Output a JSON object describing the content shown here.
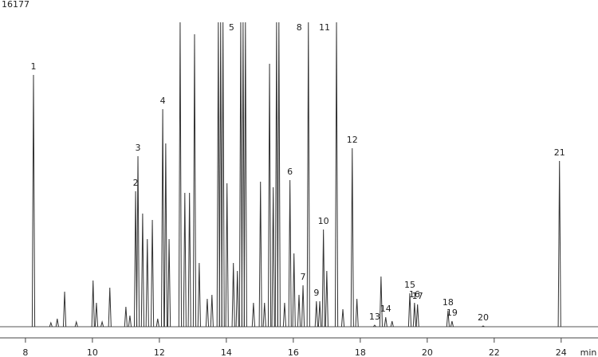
{
  "chart_data": {
    "type": "line",
    "xlabel": "min",
    "color": "#333333",
    "xlim": [
      7.24,
      25.1
    ],
    "xticks": [
      8,
      10,
      12,
      14,
      16,
      18,
      20,
      22,
      24
    ],
    "ylim": [
      0,
      16177
    ],
    "yticks": [
      16177
    ],
    "x": [
      8.24,
      8.76,
      8.95,
      9.17,
      9.52,
      10.02,
      10.12,
      10.29,
      10.52,
      11.0,
      11.12,
      11.29,
      11.36,
      11.5,
      11.64,
      11.79,
      11.95,
      12.1,
      12.19,
      12.29,
      12.62,
      12.76,
      12.9,
      13.05,
      13.19,
      13.43,
      13.57,
      13.76,
      13.83,
      13.9,
      14.02,
      14.21,
      14.33,
      14.43,
      14.5,
      14.57,
      14.81,
      15.02,
      15.14,
      15.29,
      15.4,
      15.5,
      15.57,
      15.74,
      15.9,
      16.02,
      16.17,
      16.29,
      16.45,
      16.69,
      16.79,
      16.9,
      17.0,
      17.29,
      17.48,
      17.76,
      17.9,
      18.43,
      18.62,
      18.76,
      18.95,
      19.48,
      19.62,
      19.71,
      20.62,
      20.74,
      21.67,
      23.95
    ],
    "values": [
      13383,
      212,
      424,
      1863,
      254,
      2456,
      1270,
      254,
      2075,
      1059,
      593,
      7200,
      9063,
      6014,
      4658,
      5675,
      424,
      11562,
      9740,
      4658,
      16177,
      7115,
      7115,
      15542,
      3388,
      1482,
      1694,
      16177,
      16177,
      16177,
      7623,
      3388,
      2965,
      16177,
      16177,
      16177,
      1270,
      7708,
      1270,
      13976,
      7411,
      16177,
      16177,
      1270,
      7792,
      3896,
      1694,
      2202,
      16177,
      1355,
      1355,
      5167,
      2965,
      16177,
      932,
      9486,
      1482,
      85,
      2668,
      508,
      296,
      1779,
      1270,
      1186,
      847,
      296,
      42,
      8809
    ],
    "peak_labels": [
      "1",
      null,
      null,
      null,
      null,
      null,
      null,
      null,
      null,
      null,
      null,
      "2",
      "3",
      null,
      null,
      null,
      null,
      "4",
      null,
      null,
      null,
      null,
      null,
      null,
      null,
      null,
      null,
      null,
      null,
      null,
      null,
      null,
      null,
      "5",
      null,
      null,
      null,
      null,
      null,
      null,
      null,
      null,
      null,
      null,
      "6",
      null,
      null,
      "7",
      "8",
      "9",
      null,
      "10",
      null,
      "11",
      null,
      "12",
      null,
      "13",
      null,
      "14",
      null,
      "15",
      "16",
      "17",
      "18",
      "19",
      "20",
      "21"
    ]
  }
}
